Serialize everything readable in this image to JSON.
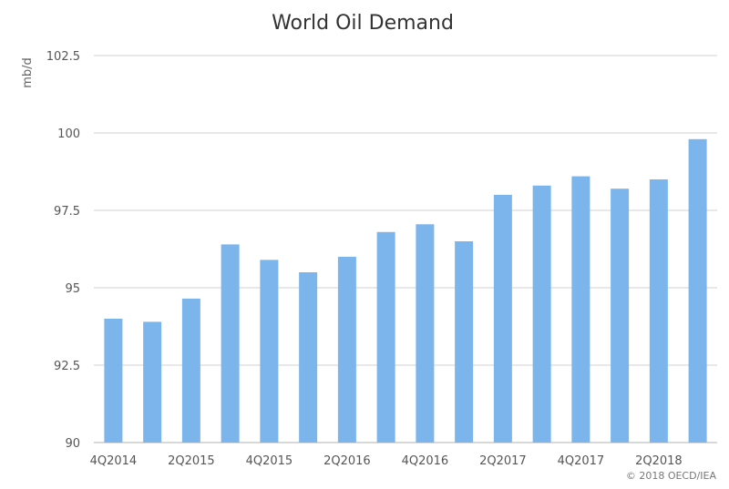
{
  "chart_data": {
    "type": "bar",
    "title": "World Oil Demand",
    "ylabel": "mb/d",
    "xlabel": "",
    "ylim": [
      90,
      102.5
    ],
    "yticks": [
      90,
      92.5,
      95,
      97.5,
      100,
      102.5
    ],
    "ytick_labels": [
      "90",
      "92.5",
      "95",
      "97.5",
      "100",
      "102.5"
    ],
    "categories": [
      "4Q2014",
      "1Q2015",
      "2Q2015",
      "3Q2015",
      "4Q2015",
      "1Q2016",
      "2Q2016",
      "3Q2016",
      "4Q2016",
      "1Q2017",
      "2Q2017",
      "3Q2017",
      "4Q2017",
      "1Q2018",
      "2Q2018",
      "3Q2018"
    ],
    "xtick_labels": [
      "4Q2014",
      "",
      "2Q2015",
      "",
      "4Q2015",
      "",
      "2Q2016",
      "",
      "4Q2016",
      "",
      "2Q2017",
      "",
      "4Q2017",
      "",
      "2Q2018",
      ""
    ],
    "values": [
      94.0,
      93.9,
      94.65,
      96.4,
      95.9,
      95.5,
      96.0,
      96.8,
      97.05,
      96.5,
      98.0,
      98.3,
      98.6,
      98.2,
      98.5,
      99.8
    ],
    "grid": true,
    "bar_color": "#7cb5ec",
    "credit": "© 2018 OECD/IEA"
  }
}
